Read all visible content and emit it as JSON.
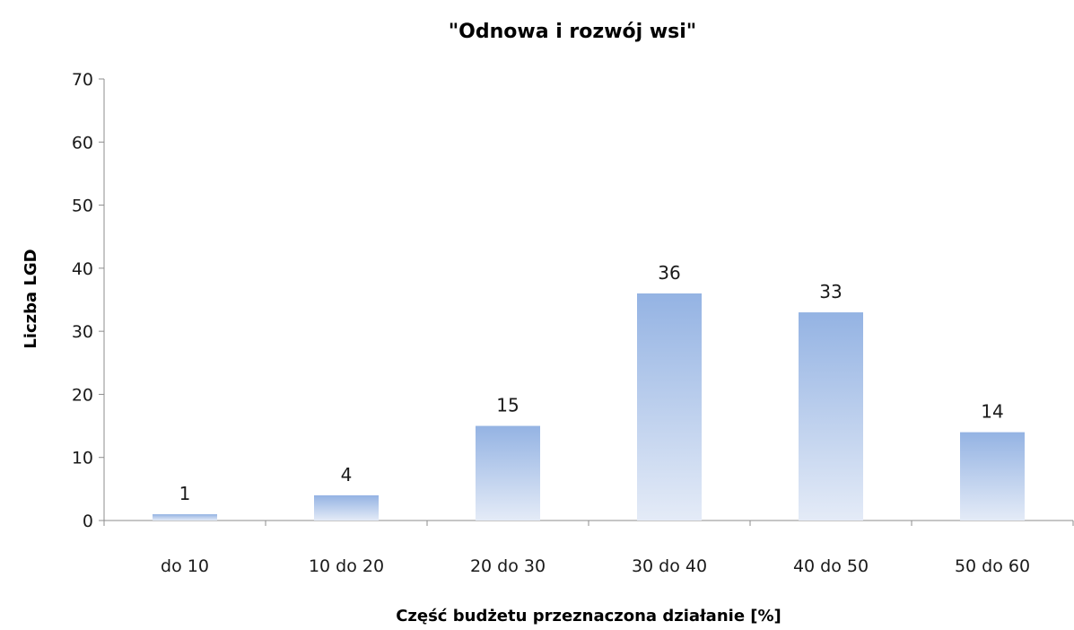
{
  "chart_data": {
    "type": "bar",
    "title": "\"Odnowa i rozwój wsi\"",
    "xlabel": "Część budżetu przeznaczona działanie [%]",
    "ylabel": "Liczba LGD",
    "categories": [
      "do 10",
      "10 do 20",
      "20 do 30",
      "30 do 40",
      "40 do 50",
      "50 do 60"
    ],
    "values": [
      1,
      4,
      15,
      36,
      33,
      14
    ],
    "data_labels": [
      "1",
      "4",
      "15",
      "36",
      "33",
      "14"
    ],
    "ylim": [
      0,
      70
    ],
    "yticks": [
      0,
      10,
      20,
      30,
      40,
      50,
      60,
      70
    ],
    "grid": false,
    "legend": "none",
    "bar_color_top": "#94b3e3",
    "bar_color_bottom": "#e4ebf7"
  }
}
